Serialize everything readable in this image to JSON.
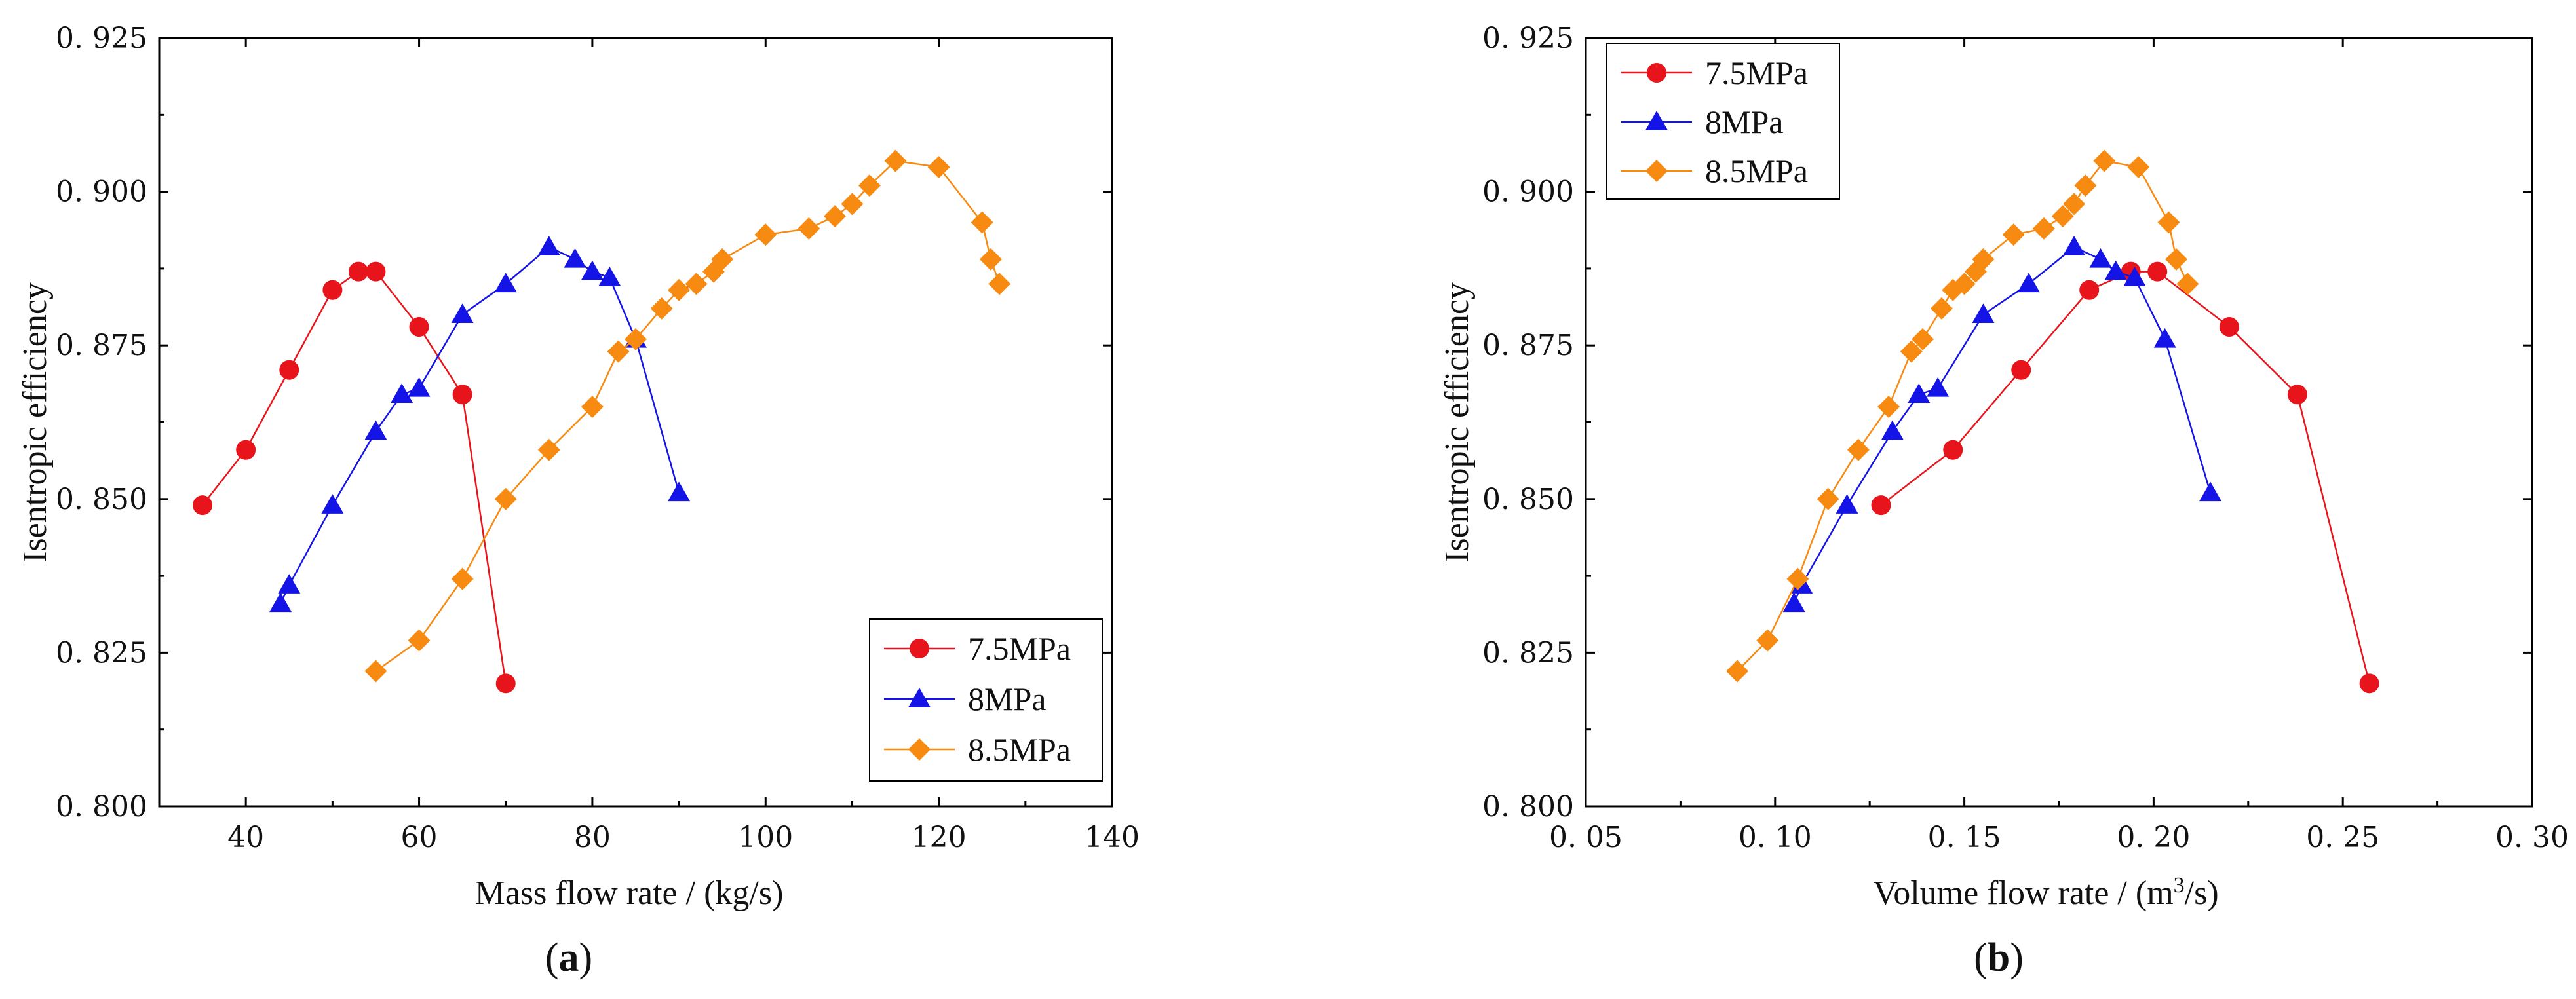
{
  "chart_data": [
    {
      "type": "line",
      "panel_label_parts": [
        "(",
        "a",
        ")"
      ],
      "xlabel": "Mass flow rate / (kg/s)",
      "ylabel": "Isentropic efficiency",
      "xlim": [
        30,
        140
      ],
      "ylim": [
        0.8,
        0.925
      ],
      "x_ticks": [
        40,
        60,
        80,
        100,
        120,
        140
      ],
      "x_tick_labels": [
        "40",
        "60",
        "80",
        "100",
        "120",
        "140"
      ],
      "y_ticks": [
        0.8,
        0.825,
        0.85,
        0.875,
        0.9,
        0.925
      ],
      "y_tick_labels": [
        "0. 800",
        "0. 825",
        "0. 850",
        "0. 875",
        "0. 900",
        "0. 925"
      ],
      "legend_position": "bottom-right",
      "series": [
        {
          "name": "7.5MPa",
          "color": "#e8141b",
          "marker": "circle",
          "points": [
            [
              35,
              0.849
            ],
            [
              40,
              0.858
            ],
            [
              45,
              0.871
            ],
            [
              50,
              0.884
            ],
            [
              53,
              0.887
            ],
            [
              55,
              0.887
            ],
            [
              60,
              0.878
            ],
            [
              65,
              0.867
            ],
            [
              70,
              0.82
            ]
          ]
        },
        {
          "name": "8MPa",
          "color": "#1414e6",
          "marker": "triangle",
          "points": [
            [
              44,
              0.833
            ],
            [
              45,
              0.836
            ],
            [
              50,
              0.849
            ],
            [
              55,
              0.861
            ],
            [
              58,
              0.867
            ],
            [
              60,
              0.868
            ],
            [
              65,
              0.88
            ],
            [
              70,
              0.885
            ],
            [
              75,
              0.891
            ],
            [
              78,
              0.889
            ],
            [
              80,
              0.887
            ],
            [
              82,
              0.886
            ],
            [
              85,
              0.876
            ],
            [
              90,
              0.851
            ]
          ]
        },
        {
          "name": "8.5MPa",
          "color": "#f78b12",
          "marker": "diamond",
          "points": [
            [
              55,
              0.822
            ],
            [
              60,
              0.827
            ],
            [
              65,
              0.837
            ],
            [
              70,
              0.85
            ],
            [
              75,
              0.858
            ],
            [
              80,
              0.865
            ],
            [
              83,
              0.874
            ],
            [
              85,
              0.876
            ],
            [
              88,
              0.881
            ],
            [
              90,
              0.884
            ],
            [
              92,
              0.885
            ],
            [
              94,
              0.887
            ],
            [
              95,
              0.889
            ],
            [
              100,
              0.893
            ],
            [
              105,
              0.894
            ],
            [
              108,
              0.896
            ],
            [
              110,
              0.898
            ],
            [
              112,
              0.901
            ],
            [
              115,
              0.905
            ],
            [
              120,
              0.904
            ],
            [
              125,
              0.895
            ],
            [
              126,
              0.889
            ],
            [
              127,
              0.885
            ]
          ]
        }
      ]
    },
    {
      "type": "line",
      "panel_label_parts": [
        "(",
        "b",
        ")"
      ],
      "xlabel_parts": [
        "Volume flow rate / (m",
        "3",
        "/s)"
      ],
      "ylabel": "Isentropic efficiency",
      "xlim": [
        0.05,
        0.3
      ],
      "ylim": [
        0.8,
        0.925
      ],
      "x_ticks": [
        0.05,
        0.1,
        0.15,
        0.2,
        0.25,
        0.3
      ],
      "x_tick_labels": [
        "0. 05",
        "0. 10",
        "0. 15",
        "0. 20",
        "0. 25",
        "0. 30"
      ],
      "y_ticks": [
        0.8,
        0.825,
        0.85,
        0.875,
        0.9,
        0.925
      ],
      "y_tick_labels": [
        "0. 800",
        "0. 825",
        "0. 850",
        "0. 875",
        "0. 900",
        "0. 925"
      ],
      "legend_position": "top-left",
      "series": [
        {
          "name": "7.5MPa",
          "color": "#e8141b",
          "marker": "circle",
          "points": [
            [
              0.128,
              0.849
            ],
            [
              0.147,
              0.858
            ],
            [
              0.165,
              0.871
            ],
            [
              0.183,
              0.884
            ],
            [
              0.194,
              0.887
            ],
            [
              0.201,
              0.887
            ],
            [
              0.22,
              0.878
            ],
            [
              0.238,
              0.867
            ],
            [
              0.257,
              0.82
            ]
          ]
        },
        {
          "name": "8MPa",
          "color": "#1414e6",
          "marker": "triangle",
          "points": [
            [
              0.105,
              0.833
            ],
            [
              0.107,
              0.836
            ],
            [
              0.119,
              0.849
            ],
            [
              0.131,
              0.861
            ],
            [
              0.138,
              0.867
            ],
            [
              0.143,
              0.868
            ],
            [
              0.155,
              0.88
            ],
            [
              0.167,
              0.885
            ],
            [
              0.179,
              0.891
            ],
            [
              0.186,
              0.889
            ],
            [
              0.19,
              0.887
            ],
            [
              0.195,
              0.886
            ],
            [
              0.203,
              0.876
            ],
            [
              0.215,
              0.851
            ]
          ]
        },
        {
          "name": "8.5MPa",
          "color": "#f78b12",
          "marker": "diamond",
          "points": [
            [
              0.09,
              0.822
            ],
            [
              0.098,
              0.827
            ],
            [
              0.106,
              0.837
            ],
            [
              0.114,
              0.85
            ],
            [
              0.122,
              0.858
            ],
            [
              0.13,
              0.865
            ],
            [
              0.136,
              0.874
            ],
            [
              0.139,
              0.876
            ],
            [
              0.144,
              0.881
            ],
            [
              0.147,
              0.884
            ],
            [
              0.15,
              0.885
            ],
            [
              0.153,
              0.887
            ],
            [
              0.155,
              0.889
            ],
            [
              0.163,
              0.893
            ],
            [
              0.171,
              0.894
            ],
            [
              0.176,
              0.896
            ],
            [
              0.179,
              0.898
            ],
            [
              0.182,
              0.901
            ],
            [
              0.187,
              0.905
            ],
            [
              0.196,
              0.904
            ],
            [
              0.204,
              0.895
            ],
            [
              0.206,
              0.889
            ],
            [
              0.209,
              0.885
            ]
          ]
        }
      ]
    }
  ]
}
